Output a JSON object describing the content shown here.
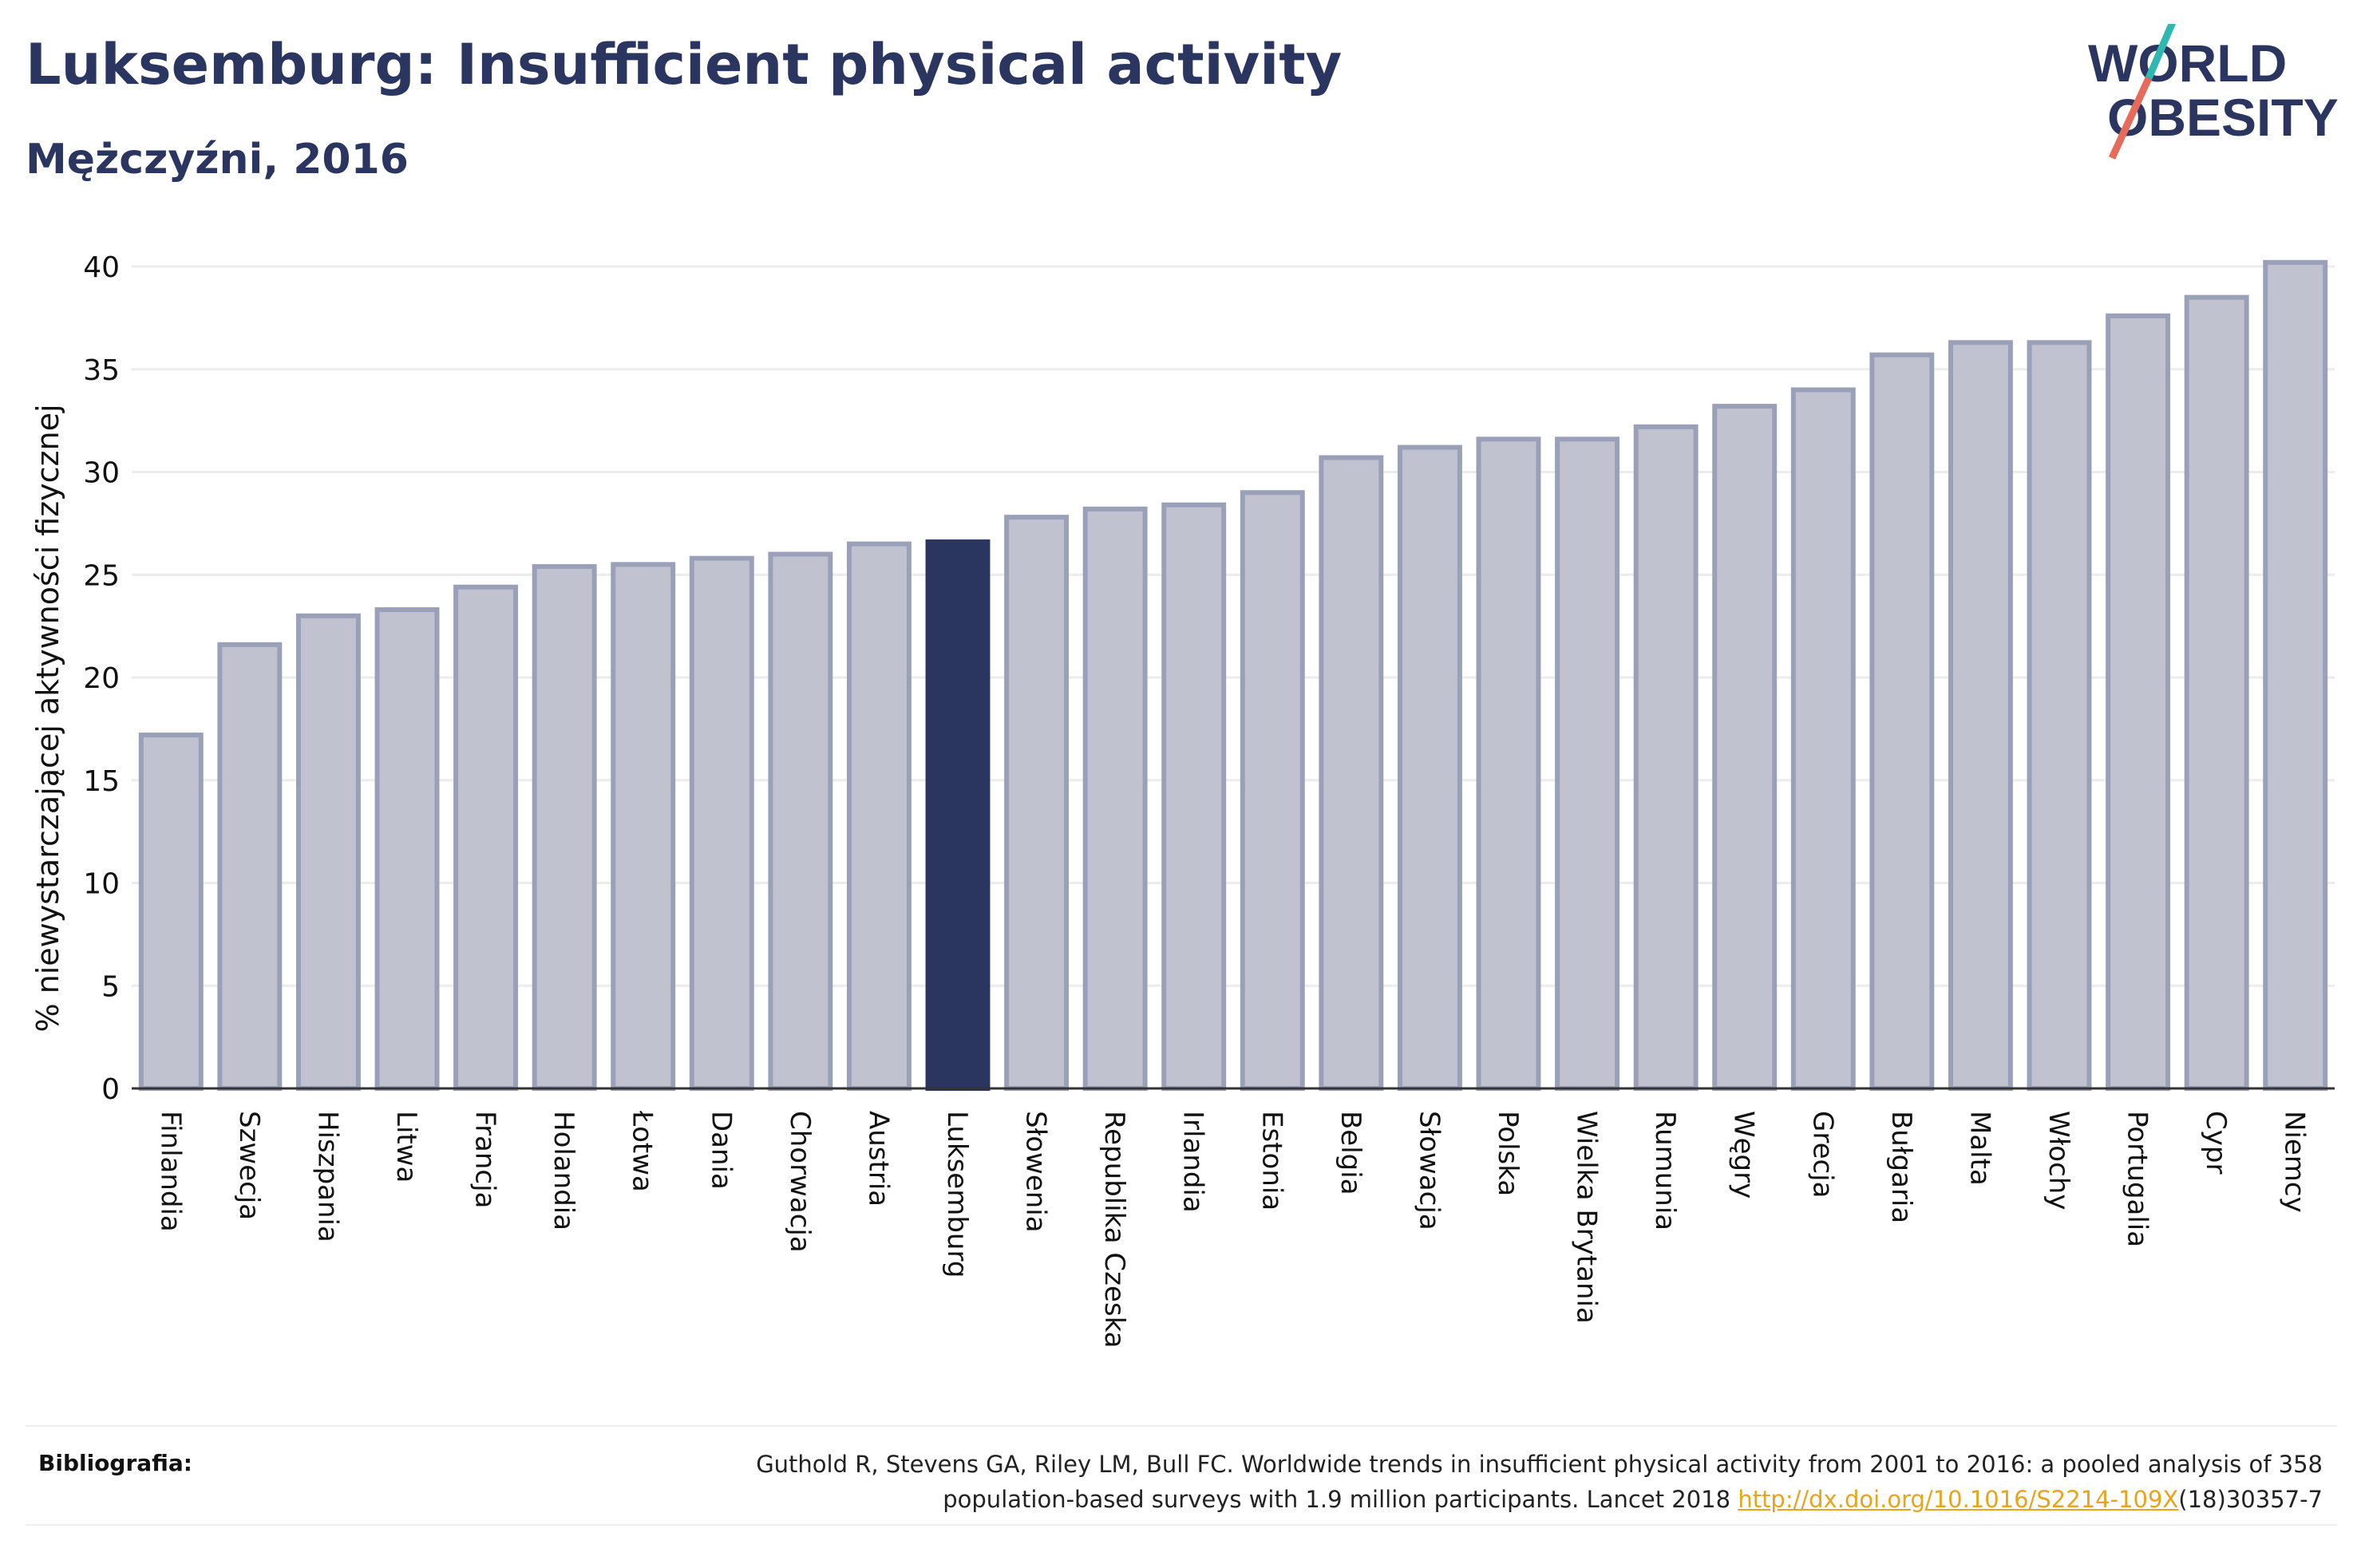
{
  "header": {
    "title": "Luksemburg: Insufficient physical activity",
    "subtitle": "Mężczyźni, 2016"
  },
  "logo": {
    "line1": "WORLD",
    "line2": "OBESITY",
    "colors": {
      "text": "#2a3560",
      "slash_teal": "#2fb8b0",
      "slash_coral": "#e66b5b"
    }
  },
  "colors": {
    "bar_default_fill": "#c0c3cf",
    "bar_default_stroke": "#9aa0b8",
    "bar_highlight": "#2a3560",
    "grid": "#ececec",
    "axis": "#333333"
  },
  "chart_data": {
    "type": "bar",
    "ylabel": "% niewystarczającej aktywności fizycznej",
    "ylim": [
      0,
      40
    ],
    "yticks": [
      "0",
      "5",
      "10",
      "15",
      "20",
      "25",
      "30",
      "35",
      "40"
    ],
    "grid": true,
    "highlight": "Luksemburg",
    "categories": [
      "Finlandia",
      "Szwecja",
      "Hiszpania",
      "Litwa",
      "Francja",
      "Holandia",
      "Łotwa",
      "Dania",
      "Chorwacja",
      "Austria",
      "Luksemburg",
      "Słowenia",
      "Republika Czeska",
      "Irlandia",
      "Estonia",
      "Belgia",
      "Słowacja",
      "Polska",
      "Wielka Brytania",
      "Rumunia",
      "Węgry",
      "Grecja",
      "Bułgaria",
      "Malta",
      "Włochy",
      "Portugalia",
      "Cypr",
      "Niemcy"
    ],
    "values": [
      17.2,
      21.6,
      23.0,
      23.3,
      24.4,
      25.4,
      25.5,
      25.8,
      26.0,
      26.5,
      26.6,
      27.8,
      28.2,
      28.4,
      29.0,
      30.7,
      31.2,
      31.6,
      31.6,
      32.2,
      33.2,
      34.0,
      35.7,
      36.3,
      36.3,
      37.6,
      38.5,
      40.2
    ]
  },
  "bibliography": {
    "label": "Bibliografia:",
    "line1": "Guthold R, Stevens GA, Riley LM, Bull FC. Worldwide trends in insufficient physical activity from 2001 to 2016: a pooled analysis of 358",
    "line2_pre": "population-based surveys with 1.9 million participants. Lancet 2018 ",
    "link": "http://dx.doi.org/10.1016/S2214-109X",
    "line2_post": "(18)30357-7"
  }
}
